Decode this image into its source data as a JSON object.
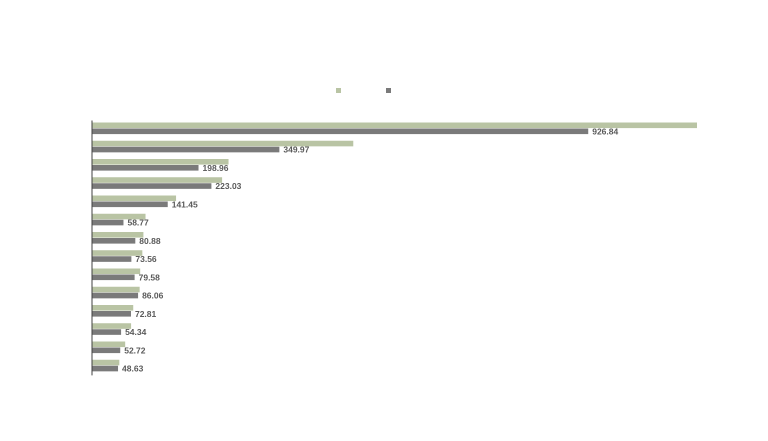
{
  "chart_data": {
    "type": "bar",
    "orientation": "horizontal",
    "legend_position": "top-center",
    "grid": false,
    "xlim": [
      0,
      1130
    ],
    "colors": {
      "series_a": "#b9c4a4",
      "series_b": "#7a7a7a",
      "axis": "#404040",
      "label": "#595959"
    },
    "categories": [
      "",
      "",
      "",
      "",
      "",
      "",
      "",
      "",
      "",
      "",
      "",
      "",
      "",
      ""
    ],
    "series": [
      {
        "color": "#b9c4a4",
        "values": [
          1130,
          488,
          255,
          243,
          157,
          100,
          96,
          94,
          90,
          89,
          77,
          73,
          62,
          51
        ]
      },
      {
        "color": "#7a7a7a",
        "values": [
          926.84,
          349.97,
          198.96,
          223.03,
          141.45,
          58.77,
          80.88,
          73.56,
          79.58,
          86.06,
          72.81,
          54.34,
          52.72,
          48.63
        ]
      }
    ],
    "data_labels": [
      "926.84",
      "349.97",
      "198.96",
      "223.03",
      "141.45",
      "58.77",
      "80.88",
      "73.56",
      "79.58",
      "86.06",
      "72.81",
      "54.34",
      "52.72",
      "48.63"
    ]
  }
}
